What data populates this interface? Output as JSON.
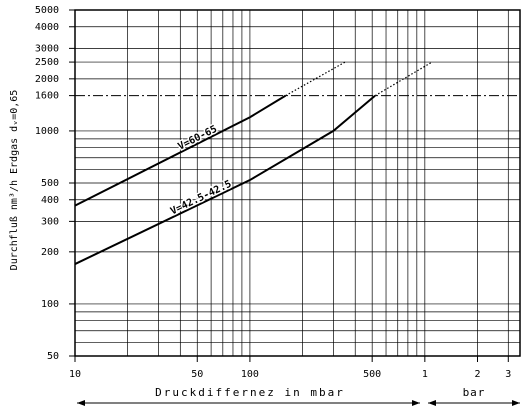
{
  "chart_data": {
    "type": "line",
    "xlabel": "Druckdiffernez in mbar",
    "xlabel2": "bar",
    "ylabel": "Durchfluß nm³/h Erdgas dᵥ=0,65",
    "xscale": "log",
    "yscale": "log",
    "xlim": [
      10,
      3500
    ],
    "ylim": [
      50,
      5000
    ],
    "xticks": [
      10,
      50,
      100,
      500,
      {
        "value": 1000,
        "label": "1"
      },
      {
        "value": 2000,
        "label": "2"
      },
      {
        "value": 3000,
        "label": "3"
      }
    ],
    "yticks": [
      50,
      100,
      200,
      300,
      400,
      500,
      1000,
      1600,
      2000,
      2500,
      3000,
      4000,
      5000
    ],
    "xgrid": [
      10,
      20,
      30,
      40,
      50,
      60,
      70,
      80,
      90,
      100,
      200,
      300,
      400,
      500,
      600,
      700,
      800,
      900,
      1000,
      2000,
      3000
    ],
    "ygrid": [
      50,
      60,
      70,
      80,
      90,
      100,
      200,
      300,
      400,
      500,
      600,
      700,
      800,
      900,
      1000,
      2000,
      3000,
      4000,
      5000
    ],
    "dashdot_y": 1600,
    "series": [
      {
        "name": "V=60-65",
        "color": "#000",
        "x": [
          10,
          100,
          160
        ],
        "values": [
          370,
          1200,
          1600
        ],
        "extension": {
          "x": [
            160,
            350
          ],
          "values": [
            1600,
            2500
          ]
        }
      },
      {
        "name": "V=42.5-42.5",
        "color": "#000",
        "x": [
          10,
          100,
          300,
          520
        ],
        "values": [
          170,
          520,
          1000,
          1600
        ],
        "extension": {
          "x": [
            520,
            1100
          ],
          "values": [
            1600,
            2500
          ]
        }
      }
    ]
  }
}
